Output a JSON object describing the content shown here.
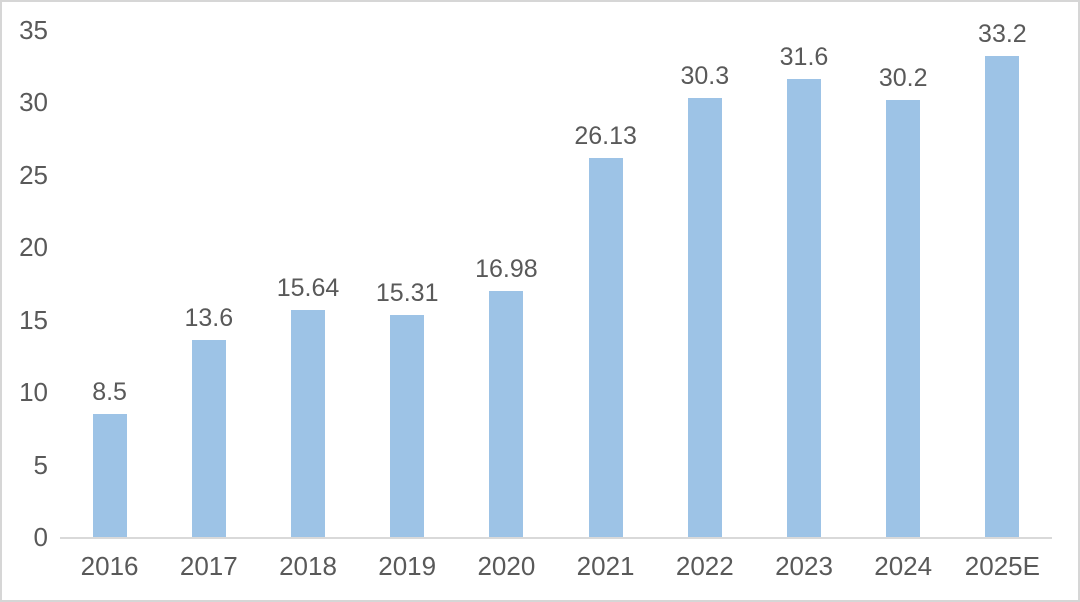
{
  "chart_data": {
    "type": "bar",
    "title": "",
    "xlabel": "",
    "ylabel": "",
    "categories": [
      "2016",
      "2017",
      "2018",
      "2019",
      "2020",
      "2021",
      "2022",
      "2023",
      "2024",
      "2025E"
    ],
    "values": [
      8.5,
      13.6,
      15.64,
      15.31,
      16.98,
      26.13,
      30.3,
      31.6,
      30.2,
      33.2
    ],
    "data_labels": [
      "8.5",
      "13.6",
      "15.64",
      "15.31",
      "16.98",
      "26.13",
      "30.3",
      "31.6",
      "30.2",
      "33.2"
    ],
    "ylim": [
      0,
      35
    ],
    "yticks": [
      0,
      5,
      10,
      15,
      20,
      25,
      30,
      35
    ],
    "grid": false,
    "legend": false,
    "colors": {
      "bar_fill": "#9DC3E6",
      "axis_line": "#D9D9D9",
      "tick_text": "#595959",
      "label_text": "#595959",
      "card_border": "#D6D6D6",
      "background": "#FFFFFF"
    }
  }
}
